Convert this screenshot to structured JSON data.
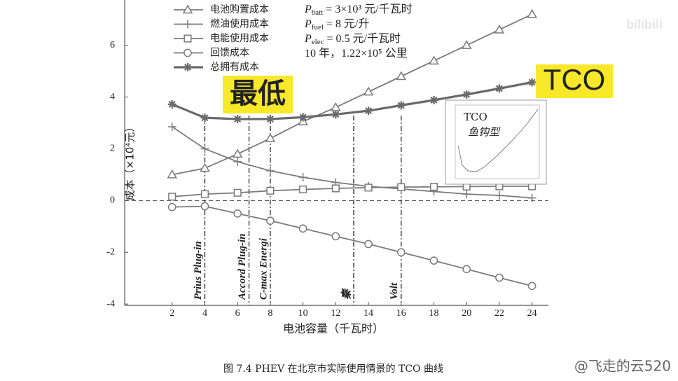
{
  "chart_data": {
    "type": "line",
    "caption": "图 7.4 PHEV 在北京市实际使用情景的 TCO 曲线",
    "x_label": "电池容量（千瓦时）",
    "y_label": "成本（×10⁴元）",
    "x": [
      2,
      4,
      6,
      8,
      10,
      12,
      14,
      16,
      18,
      20,
      22,
      24
    ],
    "xlim": [
      -0.9,
      25
    ],
    "ylim": [
      -4.05,
      7.75
    ],
    "xticks": [
      2,
      4,
      6,
      8,
      10,
      12,
      14,
      16,
      18,
      20,
      22,
      24
    ],
    "yticks": [
      -4,
      -2,
      0,
      2,
      4,
      6
    ],
    "zero_line": true,
    "series": [
      {
        "name": "电池购置成本",
        "color": "#7a7a7a",
        "marker": "triangle",
        "values": [
          1.0,
          1.25,
          1.8,
          2.4,
          3.05,
          3.6,
          4.2,
          4.8,
          5.4,
          6.0,
          6.6,
          7.2
        ]
      },
      {
        "name": "燃油使用成本",
        "color": "#7a7a7a",
        "marker": "plus",
        "values": [
          2.85,
          2.0,
          1.5,
          1.15,
          0.9,
          0.7,
          0.55,
          0.45,
          0.35,
          0.25,
          0.2,
          0.1
        ]
      },
      {
        "name": "电能使用成本",
        "color": "#7a7a7a",
        "marker": "square",
        "values": [
          0.15,
          0.25,
          0.3,
          0.38,
          0.43,
          0.47,
          0.5,
          0.52,
          0.53,
          0.54,
          0.55,
          0.55
        ]
      },
      {
        "name": "回馈成本",
        "color": "#7a7a7a",
        "marker": "circle",
        "values": [
          -0.25,
          -0.22,
          -0.5,
          -0.78,
          -1.08,
          -1.38,
          -1.68,
          -2.0,
          -2.32,
          -2.65,
          -2.98,
          -3.3
        ]
      },
      {
        "name": "总拥有成本",
        "color": "#6a6a6a",
        "marker": "asterisk",
        "bold": true,
        "values": [
          3.72,
          3.2,
          3.15,
          3.15,
          3.22,
          3.33,
          3.47,
          3.68,
          3.88,
          4.1,
          4.33,
          4.57
        ]
      }
    ],
    "vlines": [
      {
        "x": 4,
        "label": "Prius Plug-in"
      },
      {
        "x": 6.7,
        "label": "Accord Plug-in"
      },
      {
        "x": 8,
        "label": "C-max Energi"
      },
      {
        "x": 13.1,
        "label": "秦"
      },
      {
        "x": 16,
        "label": "Volt"
      }
    ],
    "parameters": [
      {
        "symbol": "P",
        "subscript": "batt",
        "text": " = 3×10³ 元/千瓦时"
      },
      {
        "symbol": "P",
        "subscript": "fuel",
        "text": " = 8 元/升"
      },
      {
        "symbol": "P",
        "subscript": "elec",
        "text": " = 0.5 元/千瓦时"
      },
      {
        "text": "10 年，1.22×10⁵ 公里"
      }
    ],
    "highlight_min": "最低",
    "highlight_tco": "TCO",
    "inset": {
      "title": "TCO",
      "subtitle": "鱼钩型"
    }
  },
  "watermark": {
    "site": "bilibili",
    "user": "@飞走的云520"
  }
}
